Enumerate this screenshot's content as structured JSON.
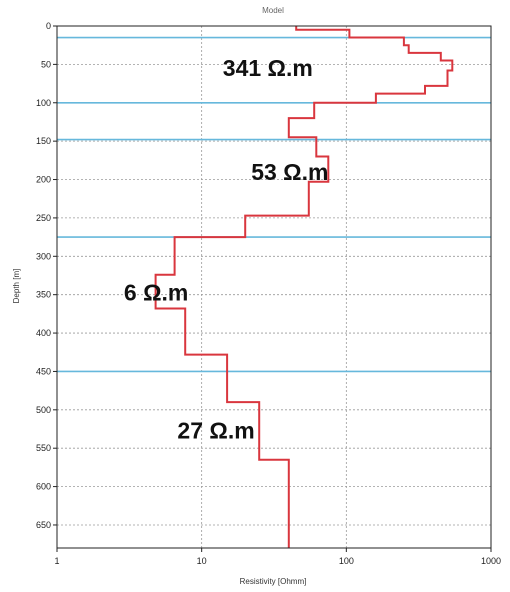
{
  "chart_data": {
    "type": "line",
    "title": "Model",
    "xlabel": "Resistivity [Ohmm]",
    "ylabel": "Depth [m]",
    "x_scale": "log",
    "xlim": [
      1,
      1000
    ],
    "ylim": [
      680,
      0
    ],
    "x_ticks": [
      "1",
      "10",
      "100",
      "1000"
    ],
    "y_ticks": [
      "0",
      "50",
      "100",
      "150",
      "200",
      "250",
      "300",
      "350",
      "400",
      "450",
      "500",
      "550",
      "600",
      "650"
    ],
    "grid": true,
    "boundaries": [
      15,
      100,
      148,
      275,
      450
    ],
    "layer_labels": [
      {
        "text": "341 Ω.m",
        "depth": 55,
        "resistivity": 14
      },
      {
        "text": "53 Ω.m",
        "depth": 190,
        "resistivity": 22
      },
      {
        "text": "6 Ω.m",
        "depth": 347,
        "resistivity": 2.9
      },
      {
        "text": "27 Ω.m",
        "depth": 527,
        "resistivity": 6.8
      }
    ],
    "series": [
      {
        "color": "#d9363e",
        "points": [
          [
            45,
            0
          ],
          [
            45,
            5
          ],
          [
            105,
            5
          ],
          [
            105,
            15
          ],
          [
            250,
            15
          ],
          [
            250,
            25
          ],
          [
            270,
            25
          ],
          [
            270,
            35
          ],
          [
            450,
            35
          ],
          [
            450,
            45
          ],
          [
            540,
            45
          ],
          [
            540,
            58
          ],
          [
            500,
            58
          ],
          [
            500,
            78
          ],
          [
            350,
            78
          ],
          [
            350,
            88
          ],
          [
            160,
            88
          ],
          [
            160,
            100
          ],
          [
            60,
            100
          ],
          [
            60,
            120
          ],
          [
            40,
            120
          ],
          [
            40,
            145
          ],
          [
            62,
            145
          ],
          [
            62,
            170
          ],
          [
            75,
            170
          ],
          [
            75,
            203
          ],
          [
            55,
            203
          ],
          [
            55,
            247
          ],
          [
            20,
            247
          ],
          [
            20,
            275
          ],
          [
            6.5,
            275
          ],
          [
            6.5,
            324
          ],
          [
            4.8,
            324
          ],
          [
            4.8,
            368
          ],
          [
            7.7,
            368
          ],
          [
            7.7,
            428
          ],
          [
            15,
            428
          ],
          [
            15,
            490
          ],
          [
            25,
            490
          ],
          [
            25,
            565
          ],
          [
            40,
            565
          ],
          [
            40,
            680
          ]
        ]
      }
    ]
  }
}
